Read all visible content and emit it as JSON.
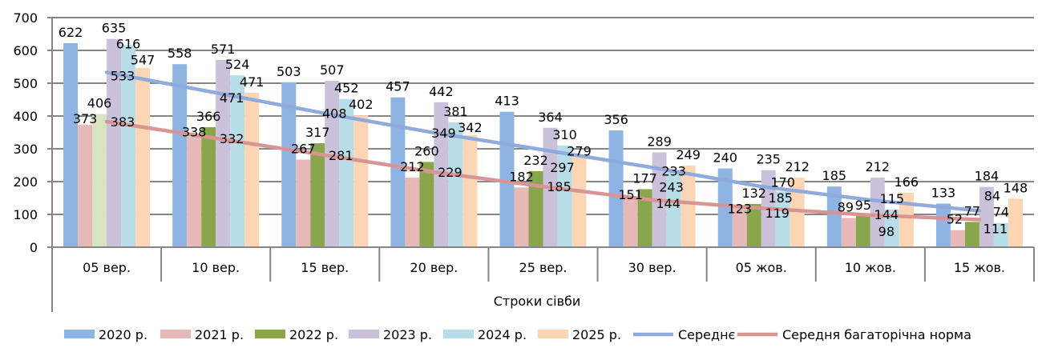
{
  "chart_data": {
    "type": "bar",
    "xlabel": "Строки сівби",
    "ylabel": "",
    "ylim": [
      0,
      700
    ],
    "yticks": [
      0,
      100,
      200,
      300,
      400,
      500,
      600,
      700
    ],
    "grid": true,
    "legend_position": "bottom",
    "categories": [
      "05 вер.",
      "10 вер.",
      "15 вер.",
      "20 вер.",
      "25 вер.",
      "30 вер.",
      "05 жов.",
      "10 жов.",
      "15 жов."
    ],
    "series": [
      {
        "name": "2020 р.",
        "kind": "bar",
        "color": "#8EB4E3",
        "values": [
          622,
          558,
          503,
          457,
          413,
          356,
          240,
          185,
          133
        ]
      },
      {
        "name": "2021 р.",
        "kind": "bar",
        "color": "#E6B9B8",
        "values": [
          373,
          338,
          267,
          212,
          182,
          151,
          123,
          89,
          52
        ]
      },
      {
        "name": "2022 р.",
        "kind": "bar",
        "color": "#8AA64C",
        "first_bar_color": "#D7E4BD",
        "values": [
          406,
          366,
          317,
          260,
          232,
          177,
          132,
          95,
          77
        ]
      },
      {
        "name": "2023 р.",
        "kind": "bar",
        "color": "#CCC1DA",
        "values": [
          635,
          571,
          507,
          442,
          364,
          289,
          235,
          212,
          184
        ]
      },
      {
        "name": "2024 р.",
        "kind": "bar",
        "color": "#B7DEE8",
        "values": [
          616,
          524,
          452,
          381,
          310,
          233,
          170,
          115,
          74
        ]
      },
      {
        "name": "2025 р.",
        "kind": "bar",
        "color": "#FCD5B5",
        "values": [
          547,
          471,
          402,
          342,
          279,
          249,
          212,
          166,
          148
        ]
      },
      {
        "name": "Середнє",
        "kind": "line",
        "color": "#8FAADC",
        "values": [
          533,
          471,
          408,
          349,
          297,
          243,
          185,
          144,
          111
        ]
      },
      {
        "name": "Середня багаторічна норма",
        "kind": "line",
        "color": "#D99594",
        "values": [
          383,
          332,
          281,
          229,
          185,
          144,
          119,
          98,
          84
        ]
      }
    ]
  }
}
